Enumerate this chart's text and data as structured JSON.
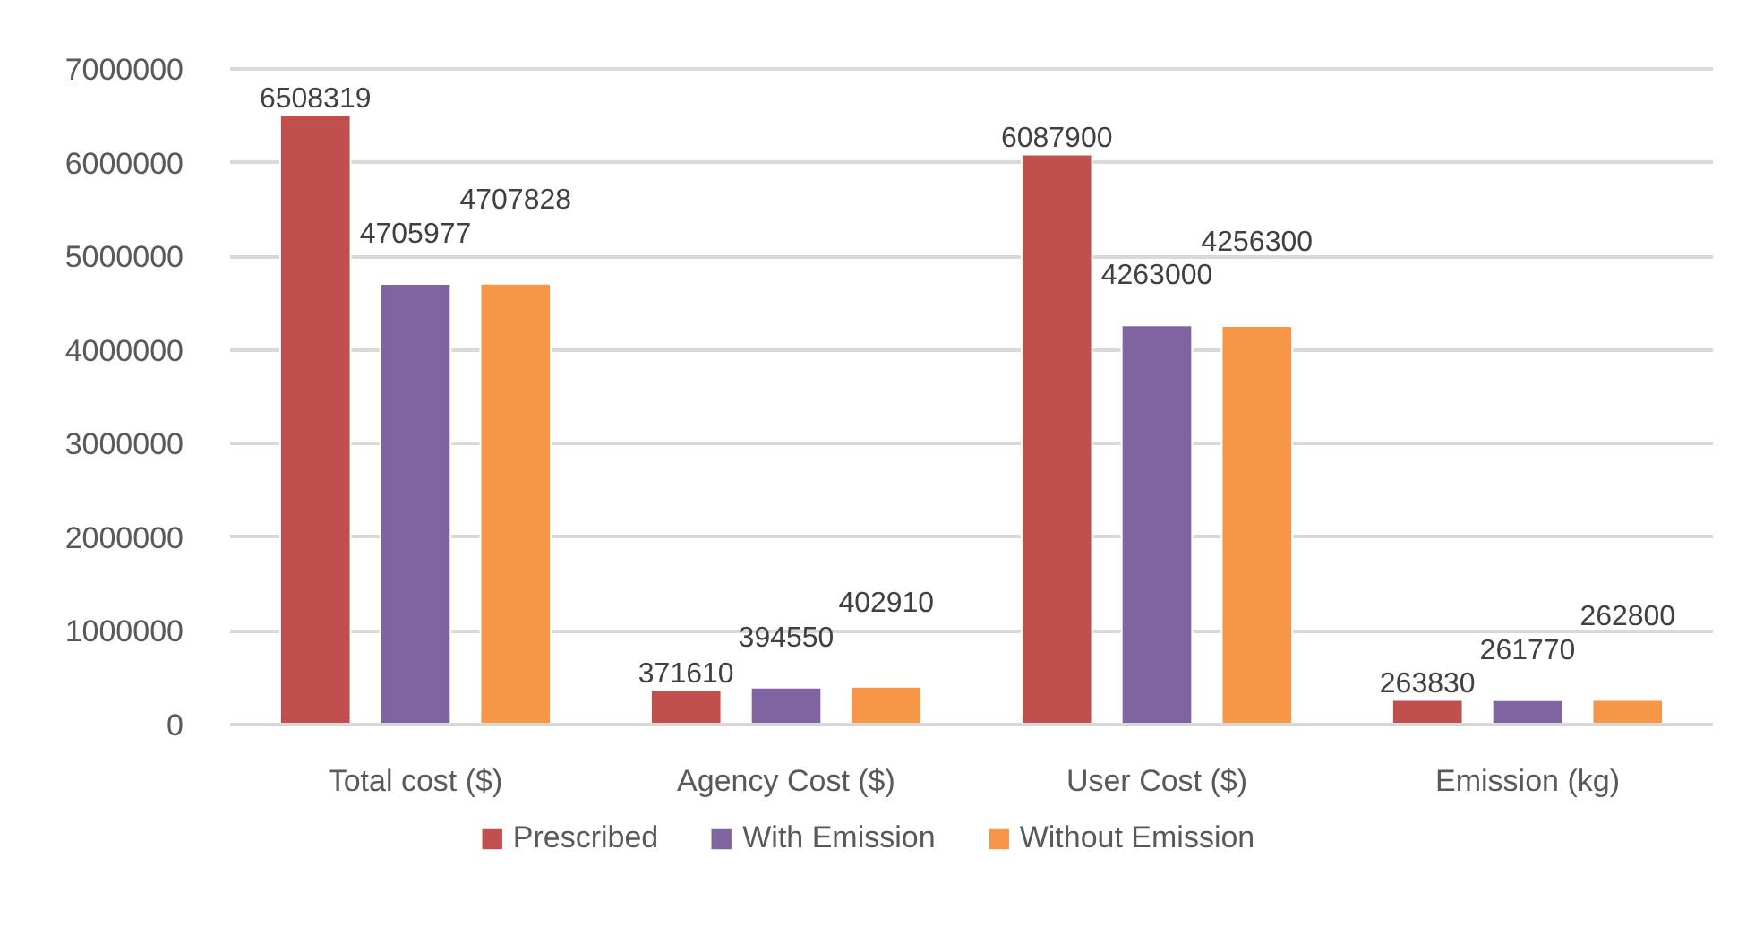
{
  "chart_data": {
    "type": "bar",
    "categories": [
      "Total cost ($)",
      "Agency Cost ($)",
      "User Cost ($)",
      "Emission (kg)"
    ],
    "series": [
      {
        "name": "Prescribed",
        "color": "#c0504d",
        "values": [
          6508319,
          371610,
          6087900,
          263830
        ]
      },
      {
        "name": "With Emission",
        "color": "#8064a2",
        "values": [
          4705977,
          394550,
          4263000,
          261770
        ]
      },
      {
        "name": "Without Emission",
        "color": "#f79646",
        "values": [
          4707828,
          402910,
          4256300,
          262800
        ]
      }
    ],
    "ylim": [
      0,
      7000000
    ],
    "yticks": [
      0,
      1000000,
      2000000,
      3000000,
      4000000,
      5000000,
      6000000,
      7000000
    ],
    "grid": "y",
    "legend": "bottom",
    "data_labels": true
  }
}
